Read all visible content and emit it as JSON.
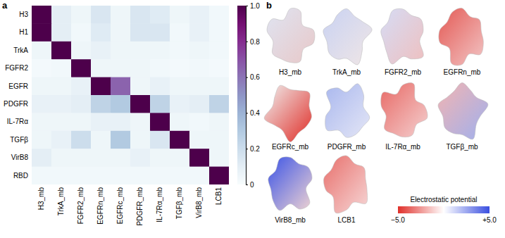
{
  "chart_data": [
    {
      "type": "heatmap",
      "panel": "a",
      "rows": [
        "H3",
        "H1",
        "TrkA",
        "FGFR2",
        "EGFR",
        "PDGFR",
        "IL-7Rα",
        "TGFβ",
        "VirB8",
        "RBD"
      ],
      "columns": [
        "H3_mb",
        "TrkA_mb",
        "FGFR2_mb",
        "EGFRn_mb",
        "EGFRc_mb",
        "PDGFR_mb",
        "IL-7Rα_mb",
        "TGFβ_mb",
        "VirB8_mb",
        "LCB1"
      ],
      "z": [
        [
          1.0,
          0.1,
          0.05,
          0.15,
          0.05,
          0.15,
          0.12,
          0.05,
          0.08,
          0.03
        ],
        [
          1.0,
          0.1,
          0.03,
          0.12,
          0.05,
          0.15,
          0.15,
          0.03,
          0.08,
          0.03
        ],
        [
          0.05,
          1.0,
          0.05,
          0.08,
          0.05,
          0.05,
          0.05,
          0.03,
          0.05,
          0.03
        ],
        [
          0.02,
          0.03,
          1.0,
          0.05,
          0.05,
          0.05,
          0.03,
          0.02,
          0.03,
          0.02
        ],
        [
          0.05,
          0.05,
          0.08,
          1.0,
          0.65,
          0.05,
          0.08,
          0.05,
          0.05,
          0.05
        ],
        [
          0.08,
          0.08,
          0.1,
          0.25,
          0.3,
          1.0,
          0.25,
          0.08,
          0.1,
          0.25
        ],
        [
          0.05,
          0.05,
          0.05,
          0.08,
          0.08,
          0.05,
          1.0,
          0.05,
          0.03,
          0.05
        ],
        [
          0.05,
          0.08,
          0.2,
          0.05,
          0.3,
          0.05,
          0.15,
          1.0,
          0.05,
          0.05
        ],
        [
          0.1,
          0.05,
          0.05,
          0.05,
          0.05,
          0.08,
          0.05,
          0.05,
          1.0,
          0.05
        ],
        [
          0.03,
          0.03,
          0.03,
          0.03,
          0.03,
          0.03,
          0.03,
          0.03,
          0.03,
          1.0
        ]
      ],
      "colorbar": {
        "range": [
          0,
          1
        ],
        "ticks": [
          0,
          0.2,
          0.4,
          0.6,
          0.8,
          {
            "value": 1,
            "label": "1.0"
          }
        ]
      }
    },
    {
      "type": "surface_grid",
      "panel": "b",
      "labels": [
        "H3_mb",
        "TrkA_mb",
        "FGFR2_mb",
        "EGFRn_mb",
        "EGFRc_mb",
        "PDGFR_mb",
        "IL-7Rα_mb",
        "TGFβ_mb",
        "VirB8_mb",
        "LCB1"
      ],
      "colorbar": {
        "title": "Electrostatic potential",
        "range": [
          -5,
          5
        ],
        "ticks": [
          {
            "value": -5,
            "label": "−5.0"
          },
          {
            "value": 5,
            "label": "+5.0"
          }
        ]
      }
    }
  ]
}
